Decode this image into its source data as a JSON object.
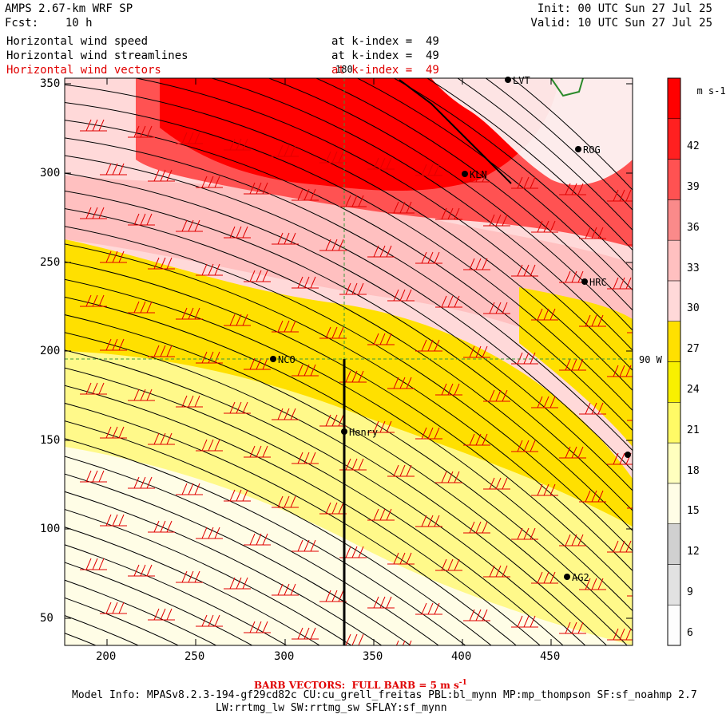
{
  "header": {
    "model": "AMPS 2.67-km WRF SP",
    "fcst": "Fcst:    10 h",
    "init": "Init: 00 UTC Sun 27 Jul 25",
    "valid": "Valid: 10 UTC Sun 27 Jul 25"
  },
  "fields": [
    {
      "name": "Horizontal wind speed",
      "level": "at k-index =  49",
      "color": "#000000"
    },
    {
      "name": "Horizontal wind streamlines",
      "level": "at k-index =  49",
      "color": "#000000"
    },
    {
      "name": "Horizontal wind vectors",
      "level": "at k-index =  49",
      "color": "#e00000"
    }
  ],
  "map": {
    "x_ticks": [
      "200",
      "250",
      "300",
      "350",
      "400",
      "450"
    ],
    "y_ticks": [
      "350",
      "300",
      "250",
      "200",
      "150",
      "100",
      "50"
    ],
    "meridian_label": "180",
    "parallel_label": "90 W",
    "stations": [
      "LVT",
      "ROG",
      "KLN",
      "HRC",
      "NCO",
      "Henry",
      "AG2",
      ""
    ]
  },
  "colorbar": {
    "units": "m s-1",
    "levels": [
      "42",
      "39",
      "36",
      "33",
      "30",
      "27",
      "24",
      "21",
      "18",
      "15",
      "12",
      "9",
      "6"
    ],
    "colors": [
      "#fdfdfd",
      "#e2e2e2",
      "#d0d0d0",
      "#fffde6",
      "#ffffbe",
      "#fffa66",
      "#f8f000",
      "#ffe000",
      "#ffd9d9",
      "#ffc0c0",
      "#fa8a8a",
      "#ff5252",
      "#ff2020",
      "#ff0000"
    ]
  },
  "footer": {
    "barb": "BARB VECTORS:  FULL BARB = 5 m s",
    "barb_sup": "-1",
    "info1": "Model Info: MPASv8.2.3-194-gf29cd82c CU:cu_grell_freitas PBL:bl_mynn MP:mp_thompson SF:sf_noahmp 2.7",
    "info2": "LW:rrtmg_lw SW:rrtmg_sw SFLAY:sf_mynn"
  }
}
